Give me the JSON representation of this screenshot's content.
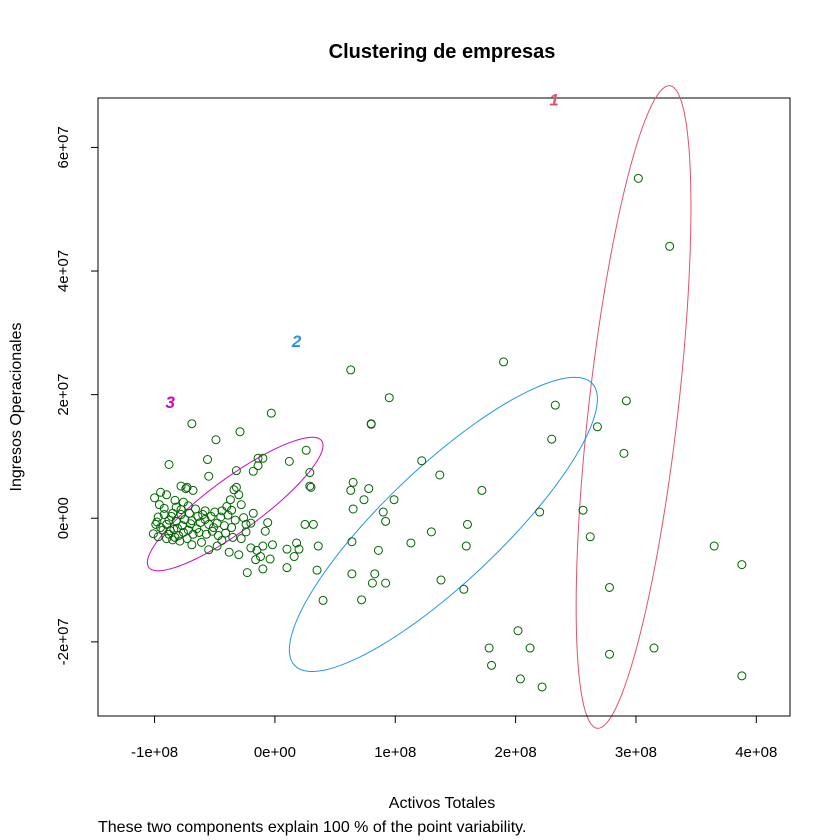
{
  "chart_data": {
    "type": "scatter",
    "title": "Clustering de empresas",
    "xlabel": "Activos Totales",
    "ylabel": "Ingresos Operacionales",
    "subtitle": "These two components explain 100 % of the point variability.",
    "xlim": [
      -147000000,
      428000000
    ],
    "ylim": [
      -32000000,
      68000000
    ],
    "x_ticks": [
      {
        "value": -100000000,
        "label": "-1e+08"
      },
      {
        "value": 0,
        "label": "0e+00"
      },
      {
        "value": 100000000,
        "label": "1e+08"
      },
      {
        "value": 200000000,
        "label": "2e+08"
      },
      {
        "value": 300000000,
        "label": "3e+08"
      },
      {
        "value": 400000000,
        "label": "4e+08"
      }
    ],
    "y_ticks": [
      {
        "value": -20000000,
        "label": "-2e+07"
      },
      {
        "value": 0,
        "label": "0e+00"
      },
      {
        "value": 20000000,
        "label": "2e+07"
      },
      {
        "value": 40000000,
        "label": "4e+07"
      },
      {
        "value": 60000000,
        "label": "6e+07"
      }
    ],
    "point_color": "#006400",
    "grid": false,
    "legend": "none",
    "clusters": [
      {
        "label": "1",
        "color": "#DF536B",
        "center": [
          298000000,
          18000000
        ],
        "semi_axes": [
          47700000,
          52000000
        ],
        "rotation": 90,
        "tilt": 0.9,
        "label_pos": [
          232000000,
          66800000
        ]
      },
      {
        "label": "2",
        "color": "#2297E6",
        "center": [
          140000000,
          -1000000
        ],
        "semi_axes": [
          128000000,
          23800000
        ],
        "rotation": 120,
        "tilt": 0.55,
        "label_pos": [
          18000000,
          27700000
        ]
      },
      {
        "label": "3",
        "color": "#CD0BBC",
        "center": [
          -33000000,
          2300000
        ],
        "semi_axes": [
          73000000,
          10800000
        ],
        "rotation": 148,
        "tilt": 0.5,
        "label_pos": [
          -87000000,
          17800000
        ]
      }
    ],
    "points": [
      [
        302000000,
        55000000
      ],
      [
        328000000,
        44000000
      ],
      [
        190000000,
        25300000
      ],
      [
        233000000,
        18300000
      ],
      [
        292000000,
        19000000
      ],
      [
        268000000,
        14800000
      ],
      [
        290000000,
        10500000
      ],
      [
        230000000,
        12800000
      ],
      [
        256000000,
        1300000
      ],
      [
        262000000,
        -3000000
      ],
      [
        220000000,
        1000000
      ],
      [
        365000000,
        -4500000
      ],
      [
        388000000,
        -7500000
      ],
      [
        278000000,
        -11200000
      ],
      [
        315000000,
        -21000000
      ],
      [
        278000000,
        -22000000
      ],
      [
        388000000,
        -25500000
      ],
      [
        63000000,
        24000000
      ],
      [
        95000000,
        19500000
      ],
      [
        80000000,
        15200000
      ],
      [
        80000000,
        15300000
      ],
      [
        -3000000,
        17000000
      ],
      [
        -29000000,
        14000000
      ],
      [
        26000000,
        11000000
      ],
      [
        12000000,
        9200000
      ],
      [
        122000000,
        9300000
      ],
      [
        137000000,
        7000000
      ],
      [
        29000000,
        7400000
      ],
      [
        29000000,
        5200000
      ],
      [
        30000000,
        5000000
      ],
      [
        65000000,
        5800000
      ],
      [
        63000000,
        4500000
      ],
      [
        78000000,
        4800000
      ],
      [
        172000000,
        4500000
      ],
      [
        99000000,
        3000000
      ],
      [
        74000000,
        3000000
      ],
      [
        65000000,
        1500000
      ],
      [
        90000000,
        1000000
      ],
      [
        160000000,
        -1000000
      ],
      [
        25000000,
        -1000000
      ],
      [
        92000000,
        -500000
      ],
      [
        113000000,
        -4000000
      ],
      [
        32000000,
        -1000000
      ],
      [
        130000000,
        -2200000
      ],
      [
        64000000,
        -3800000
      ],
      [
        159000000,
        -4500000
      ],
      [
        18000000,
        -4000000
      ],
      [
        36000000,
        -4500000
      ],
      [
        20000000,
        -5000000
      ],
      [
        86000000,
        -5200000
      ],
      [
        10000000,
        -5000000
      ],
      [
        16000000,
        -6200000
      ],
      [
        64000000,
        -9000000
      ],
      [
        35000000,
        -8400000
      ],
      [
        83000000,
        -9000000
      ],
      [
        10000000,
        -8000000
      ],
      [
        138000000,
        -10000000
      ],
      [
        92000000,
        -10500000
      ],
      [
        157000000,
        -11500000
      ],
      [
        81000000,
        -10500000
      ],
      [
        72000000,
        -13200000
      ],
      [
        40000000,
        -13300000
      ],
      [
        202000000,
        -18200000
      ],
      [
        178000000,
        -21000000
      ],
      [
        212000000,
        -21000000
      ],
      [
        180000000,
        -23800000
      ],
      [
        204000000,
        -26000000
      ],
      [
        222000000,
        -27300000
      ],
      [
        -69000000,
        15300000
      ],
      [
        -49000000,
        12700000
      ],
      [
        -88000000,
        8700000
      ],
      [
        -56000000,
        9500000
      ],
      [
        -14000000,
        9700000
      ],
      [
        -10000000,
        9700000
      ],
      [
        -14000000,
        8500000
      ],
      [
        -73000000,
        5000000
      ],
      [
        -32000000,
        7700000
      ],
      [
        -55000000,
        6800000
      ],
      [
        -18000000,
        7600000
      ],
      [
        -78000000,
        5200000
      ],
      [
        -74000000,
        4800000
      ],
      [
        -68000000,
        4500000
      ],
      [
        -95000000,
        4200000
      ],
      [
        -90000000,
        3800000
      ],
      [
        -83000000,
        2900000
      ],
      [
        -76000000,
        2600000
      ],
      [
        -96000000,
        2200000
      ],
      [
        -100000000,
        3300000
      ],
      [
        -34000000,
        4600000
      ],
      [
        -30000000,
        3800000
      ],
      [
        -32000000,
        5000000
      ],
      [
        -37000000,
        3000000
      ],
      [
        -28000000,
        2200000
      ],
      [
        -40000000,
        1900000
      ],
      [
        -44000000,
        1200000
      ],
      [
        -50000000,
        1000000
      ],
      [
        -58000000,
        1200000
      ],
      [
        -66000000,
        1500000
      ],
      [
        -71000000,
        800000
      ],
      [
        -78000000,
        600000
      ],
      [
        -86000000,
        300000
      ],
      [
        -92000000,
        600000
      ],
      [
        -97000000,
        200000
      ],
      [
        -88000000,
        -300000
      ],
      [
        -82000000,
        -500000
      ],
      [
        -75000000,
        -200000
      ],
      [
        -69000000,
        -400000
      ],
      [
        -62000000,
        -700000
      ],
      [
        -55000000,
        -1000000
      ],
      [
        -48000000,
        -800000
      ],
      [
        -42000000,
        -1200000
      ],
      [
        -36000000,
        -1500000
      ],
      [
        -24000000,
        -1000000
      ],
      [
        -20000000,
        -800000
      ],
      [
        -6000000,
        -700000
      ],
      [
        -90000000,
        -1000000
      ],
      [
        -95000000,
        -1500000
      ],
      [
        -99000000,
        -1000000
      ],
      [
        -93000000,
        -1900000
      ],
      [
        -87000000,
        -2000000
      ],
      [
        -81000000,
        -1600000
      ],
      [
        -76000000,
        -2300000
      ],
      [
        -72000000,
        -1900000
      ],
      [
        -68000000,
        -2600000
      ],
      [
        -63000000,
        -2300000
      ],
      [
        -57000000,
        -2600000
      ],
      [
        -52000000,
        -2100000
      ],
      [
        -47000000,
        -2800000
      ],
      [
        -41000000,
        -2400000
      ],
      [
        -35000000,
        -3100000
      ],
      [
        -28000000,
        -3300000
      ],
      [
        -101000000,
        -2500000
      ],
      [
        -97000000,
        -3000000
      ],
      [
        -90000000,
        -3300000
      ],
      [
        -83000000,
        -3100000
      ],
      [
        -79000000,
        -3700000
      ],
      [
        -73000000,
        -3300000
      ],
      [
        -69000000,
        -4300000
      ],
      [
        -61000000,
        -3900000
      ],
      [
        -55000000,
        -5100000
      ],
      [
        -48000000,
        -4500000
      ],
      [
        -38000000,
        -5500000
      ],
      [
        -30000000,
        -5900000
      ],
      [
        -20000000,
        -4800000
      ],
      [
        -15000000,
        -5200000
      ],
      [
        -10000000,
        -4500000
      ],
      [
        -12000000,
        -6200000
      ],
      [
        -16000000,
        -6700000
      ],
      [
        -4000000,
        -6600000
      ],
      [
        -23000000,
        -8800000
      ],
      [
        -10000000,
        -8200000
      ],
      [
        -84000000,
        -1800000
      ],
      [
        -88000000,
        -2600000
      ],
      [
        -80000000,
        -2800000
      ],
      [
        -85000000,
        -3500000
      ],
      [
        -77000000,
        -1200000
      ],
      [
        -70000000,
        -900000
      ],
      [
        -64000000,
        300000
      ],
      [
        -60000000,
        600000
      ],
      [
        -53000000,
        300000
      ],
      [
        -45000000,
        200000
      ],
      [
        -39000000,
        500000
      ],
      [
        -33000000,
        -300000
      ],
      [
        -26000000,
        100000
      ],
      [
        -18000000,
        800000
      ],
      [
        -82000000,
        1800000
      ],
      [
        -78000000,
        1400000
      ],
      [
        -72000000,
        2000000
      ],
      [
        -85000000,
        800000
      ],
      [
        -92000000,
        1600000
      ],
      [
        -98000000,
        -600000
      ],
      [
        -65000000,
        -1700000
      ],
      [
        -58000000,
        -200000
      ],
      [
        -51000000,
        -1500000
      ],
      [
        -44000000,
        -3600000
      ],
      [
        -36000000,
        1300000
      ],
      [
        -24000000,
        -2200000
      ],
      [
        -8000000,
        -2100000
      ],
      [
        -2000000,
        -4300000
      ]
    ]
  }
}
